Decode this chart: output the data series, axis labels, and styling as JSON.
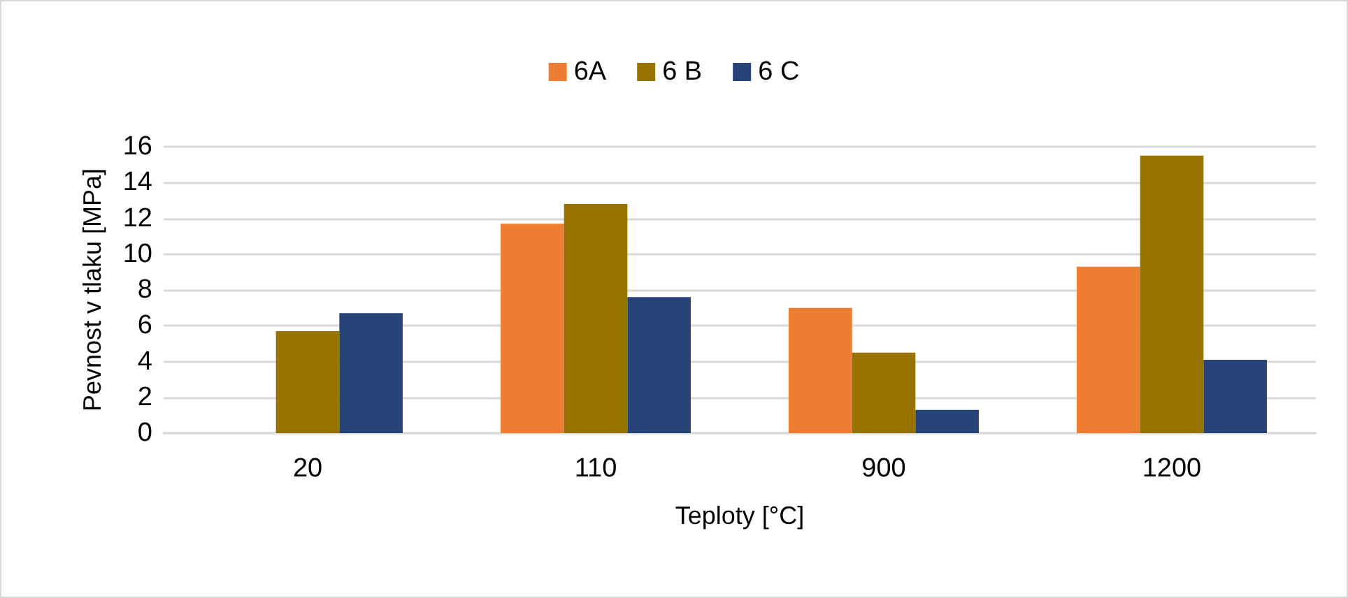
{
  "chart_data": {
    "type": "bar",
    "xlabel": "Teploty [°C]",
    "ylabel": "Pevnost v tlaku [MPa]",
    "categories": [
      "20",
      "110",
      "900",
      "1200"
    ],
    "series": [
      {
        "name": "6A",
        "color": "#ed7d31",
        "values": [
          0,
          11.7,
          7.0,
          9.3
        ]
      },
      {
        "name": "6 B",
        "color": "#997300",
        "values": [
          5.7,
          12.8,
          4.5,
          15.5
        ]
      },
      {
        "name": "6 C",
        "color": "#264478",
        "values": [
          6.7,
          7.6,
          1.3,
          4.1
        ]
      }
    ],
    "ylim": [
      0,
      16
    ],
    "yticks": [
      0,
      2,
      4,
      6,
      8,
      10,
      12,
      14,
      16
    ],
    "grid": "y",
    "legend": "top"
  }
}
